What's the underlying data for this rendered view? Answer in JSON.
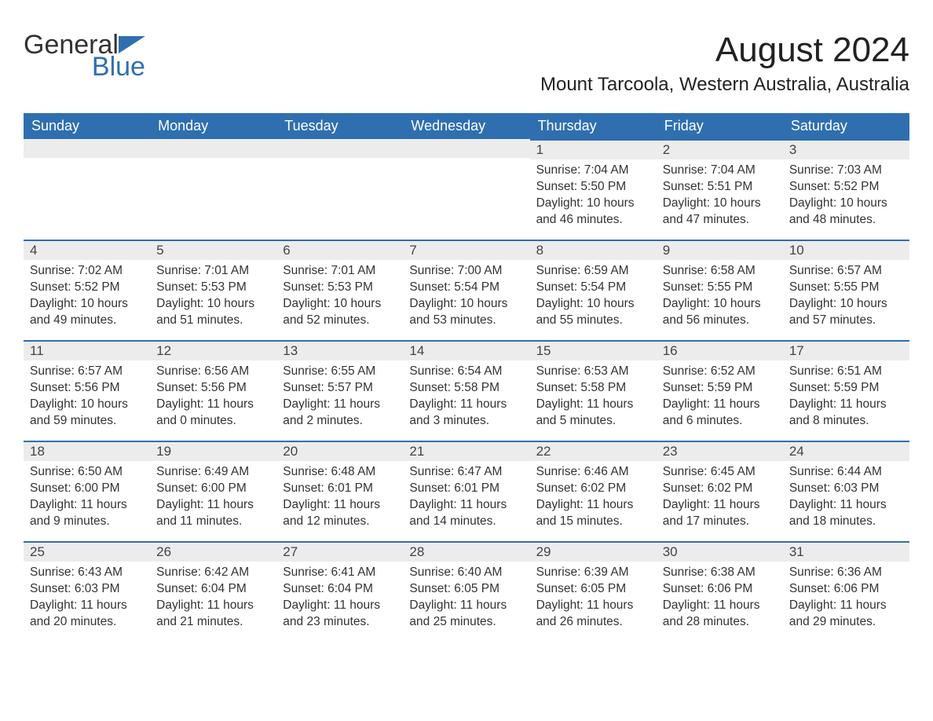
{
  "logo": {
    "text1": "General",
    "text2": "Blue"
  },
  "title": "August 2024",
  "location": "Mount Tarcoola, Western Australia, Australia",
  "colors": {
    "header_bg": "#2f6fb0",
    "header_text": "#ffffff",
    "day_header_bg": "#ececec",
    "day_border": "#2f6fb0",
    "body_text": "#333333",
    "page_bg": "#ffffff"
  },
  "weekdays": [
    "Sunday",
    "Monday",
    "Tuesday",
    "Wednesday",
    "Thursday",
    "Friday",
    "Saturday"
  ],
  "weeks": [
    [
      {
        "blank": true
      },
      {
        "blank": true
      },
      {
        "blank": true
      },
      {
        "blank": true
      },
      {
        "day": "1",
        "sunrise": "Sunrise: 7:04 AM",
        "sunset": "Sunset: 5:50 PM",
        "daylight": "Daylight: 10 hours and 46 minutes."
      },
      {
        "day": "2",
        "sunrise": "Sunrise: 7:04 AM",
        "sunset": "Sunset: 5:51 PM",
        "daylight": "Daylight: 10 hours and 47 minutes."
      },
      {
        "day": "3",
        "sunrise": "Sunrise: 7:03 AM",
        "sunset": "Sunset: 5:52 PM",
        "daylight": "Daylight: 10 hours and 48 minutes."
      }
    ],
    [
      {
        "day": "4",
        "sunrise": "Sunrise: 7:02 AM",
        "sunset": "Sunset: 5:52 PM",
        "daylight": "Daylight: 10 hours and 49 minutes."
      },
      {
        "day": "5",
        "sunrise": "Sunrise: 7:01 AM",
        "sunset": "Sunset: 5:53 PM",
        "daylight": "Daylight: 10 hours and 51 minutes."
      },
      {
        "day": "6",
        "sunrise": "Sunrise: 7:01 AM",
        "sunset": "Sunset: 5:53 PM",
        "daylight": "Daylight: 10 hours and 52 minutes."
      },
      {
        "day": "7",
        "sunrise": "Sunrise: 7:00 AM",
        "sunset": "Sunset: 5:54 PM",
        "daylight": "Daylight: 10 hours and 53 minutes."
      },
      {
        "day": "8",
        "sunrise": "Sunrise: 6:59 AM",
        "sunset": "Sunset: 5:54 PM",
        "daylight": "Daylight: 10 hours and 55 minutes."
      },
      {
        "day": "9",
        "sunrise": "Sunrise: 6:58 AM",
        "sunset": "Sunset: 5:55 PM",
        "daylight": "Daylight: 10 hours and 56 minutes."
      },
      {
        "day": "10",
        "sunrise": "Sunrise: 6:57 AM",
        "sunset": "Sunset: 5:55 PM",
        "daylight": "Daylight: 10 hours and 57 minutes."
      }
    ],
    [
      {
        "day": "11",
        "sunrise": "Sunrise: 6:57 AM",
        "sunset": "Sunset: 5:56 PM",
        "daylight": "Daylight: 10 hours and 59 minutes."
      },
      {
        "day": "12",
        "sunrise": "Sunrise: 6:56 AM",
        "sunset": "Sunset: 5:56 PM",
        "daylight": "Daylight: 11 hours and 0 minutes."
      },
      {
        "day": "13",
        "sunrise": "Sunrise: 6:55 AM",
        "sunset": "Sunset: 5:57 PM",
        "daylight": "Daylight: 11 hours and 2 minutes."
      },
      {
        "day": "14",
        "sunrise": "Sunrise: 6:54 AM",
        "sunset": "Sunset: 5:58 PM",
        "daylight": "Daylight: 11 hours and 3 minutes."
      },
      {
        "day": "15",
        "sunrise": "Sunrise: 6:53 AM",
        "sunset": "Sunset: 5:58 PM",
        "daylight": "Daylight: 11 hours and 5 minutes."
      },
      {
        "day": "16",
        "sunrise": "Sunrise: 6:52 AM",
        "sunset": "Sunset: 5:59 PM",
        "daylight": "Daylight: 11 hours and 6 minutes."
      },
      {
        "day": "17",
        "sunrise": "Sunrise: 6:51 AM",
        "sunset": "Sunset: 5:59 PM",
        "daylight": "Daylight: 11 hours and 8 minutes."
      }
    ],
    [
      {
        "day": "18",
        "sunrise": "Sunrise: 6:50 AM",
        "sunset": "Sunset: 6:00 PM",
        "daylight": "Daylight: 11 hours and 9 minutes."
      },
      {
        "day": "19",
        "sunrise": "Sunrise: 6:49 AM",
        "sunset": "Sunset: 6:00 PM",
        "daylight": "Daylight: 11 hours and 11 minutes."
      },
      {
        "day": "20",
        "sunrise": "Sunrise: 6:48 AM",
        "sunset": "Sunset: 6:01 PM",
        "daylight": "Daylight: 11 hours and 12 minutes."
      },
      {
        "day": "21",
        "sunrise": "Sunrise: 6:47 AM",
        "sunset": "Sunset: 6:01 PM",
        "daylight": "Daylight: 11 hours and 14 minutes."
      },
      {
        "day": "22",
        "sunrise": "Sunrise: 6:46 AM",
        "sunset": "Sunset: 6:02 PM",
        "daylight": "Daylight: 11 hours and 15 minutes."
      },
      {
        "day": "23",
        "sunrise": "Sunrise: 6:45 AM",
        "sunset": "Sunset: 6:02 PM",
        "daylight": "Daylight: 11 hours and 17 minutes."
      },
      {
        "day": "24",
        "sunrise": "Sunrise: 6:44 AM",
        "sunset": "Sunset: 6:03 PM",
        "daylight": "Daylight: 11 hours and 18 minutes."
      }
    ],
    [
      {
        "day": "25",
        "sunrise": "Sunrise: 6:43 AM",
        "sunset": "Sunset: 6:03 PM",
        "daylight": "Daylight: 11 hours and 20 minutes."
      },
      {
        "day": "26",
        "sunrise": "Sunrise: 6:42 AM",
        "sunset": "Sunset: 6:04 PM",
        "daylight": "Daylight: 11 hours and 21 minutes."
      },
      {
        "day": "27",
        "sunrise": "Sunrise: 6:41 AM",
        "sunset": "Sunset: 6:04 PM",
        "daylight": "Daylight: 11 hours and 23 minutes."
      },
      {
        "day": "28",
        "sunrise": "Sunrise: 6:40 AM",
        "sunset": "Sunset: 6:05 PM",
        "daylight": "Daylight: 11 hours and 25 minutes."
      },
      {
        "day": "29",
        "sunrise": "Sunrise: 6:39 AM",
        "sunset": "Sunset: 6:05 PM",
        "daylight": "Daylight: 11 hours and 26 minutes."
      },
      {
        "day": "30",
        "sunrise": "Sunrise: 6:38 AM",
        "sunset": "Sunset: 6:06 PM",
        "daylight": "Daylight: 11 hours and 28 minutes."
      },
      {
        "day": "31",
        "sunrise": "Sunrise: 6:36 AM",
        "sunset": "Sunset: 6:06 PM",
        "daylight": "Daylight: 11 hours and 29 minutes."
      }
    ]
  ]
}
